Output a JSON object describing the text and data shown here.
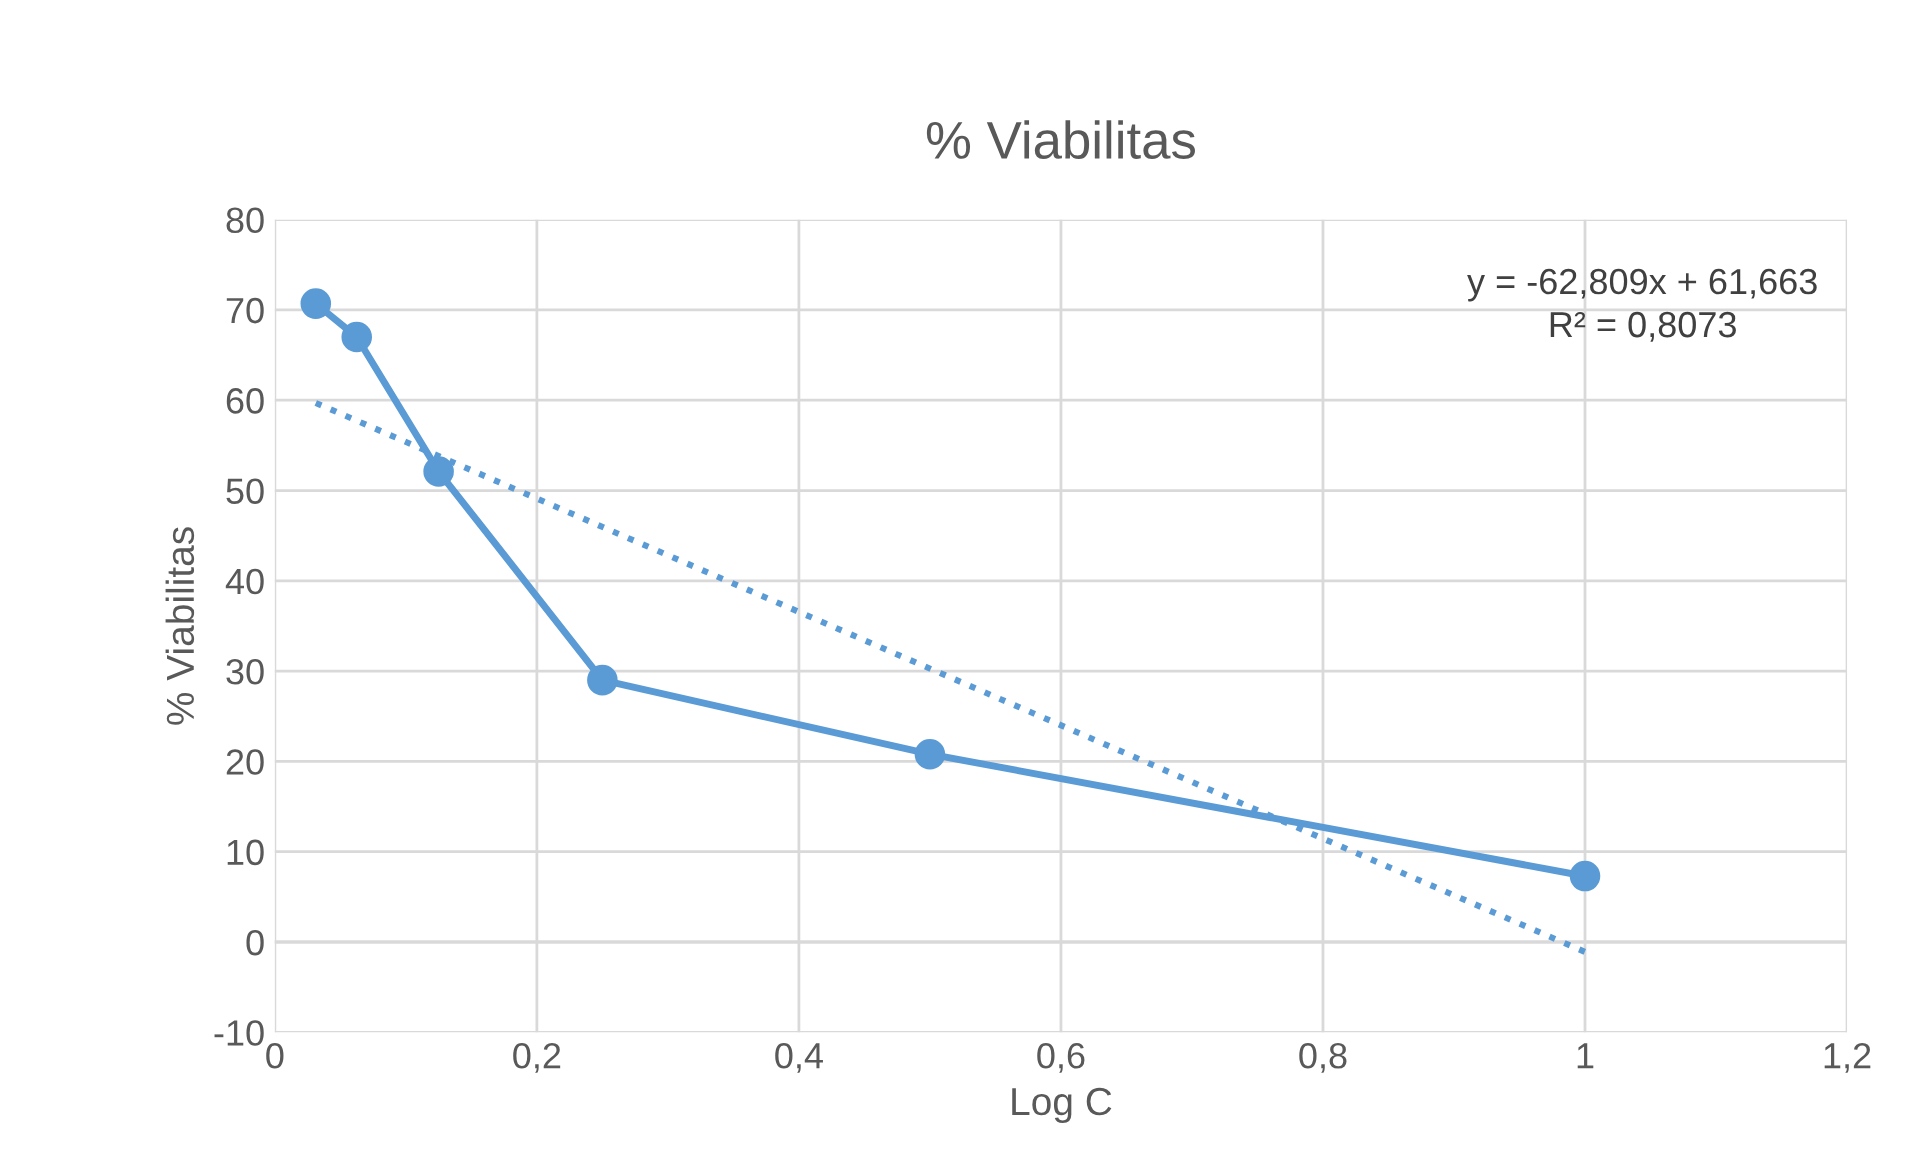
{
  "chart_data": {
    "type": "line",
    "title": "% Viabilitas",
    "xlabel": "Log C",
    "ylabel": "% Viabilitas",
    "xlim": [
      0,
      1.2
    ],
    "xticks": [
      0,
      {
        "value": 0.2,
        "label": "0,2"
      },
      {
        "value": 0.4,
        "label": "0,4"
      },
      {
        "value": 0.6,
        "label": "0,6"
      },
      {
        "value": 0.8,
        "label": "0,8"
      },
      1,
      {
        "value": 1.2,
        "label": "1,2"
      }
    ],
    "ylim": [
      -10,
      80
    ],
    "yticks": [
      -10,
      0,
      10,
      20,
      30,
      40,
      50,
      60,
      70,
      80
    ],
    "grid": true,
    "legend": false,
    "annotations": [
      "y = -62,809x + 61,663",
      "R² = 0,8073"
    ],
    "series": [
      {
        "color": "#5b9bd5",
        "x": [
          0.03125,
          0.0625,
          0.125,
          0.25,
          0.5,
          1
        ],
        "values": [
          70.7,
          67,
          52.1,
          29,
          20.8,
          7.3
        ],
        "marker": "circle",
        "line_style": "solid"
      },
      {
        "color": "#5b9bd5",
        "x": [
          0.03125,
          1
        ],
        "values": [
          59.7,
          -1.1
        ],
        "marker": "none",
        "line_style": "dotted"
      }
    ]
  }
}
